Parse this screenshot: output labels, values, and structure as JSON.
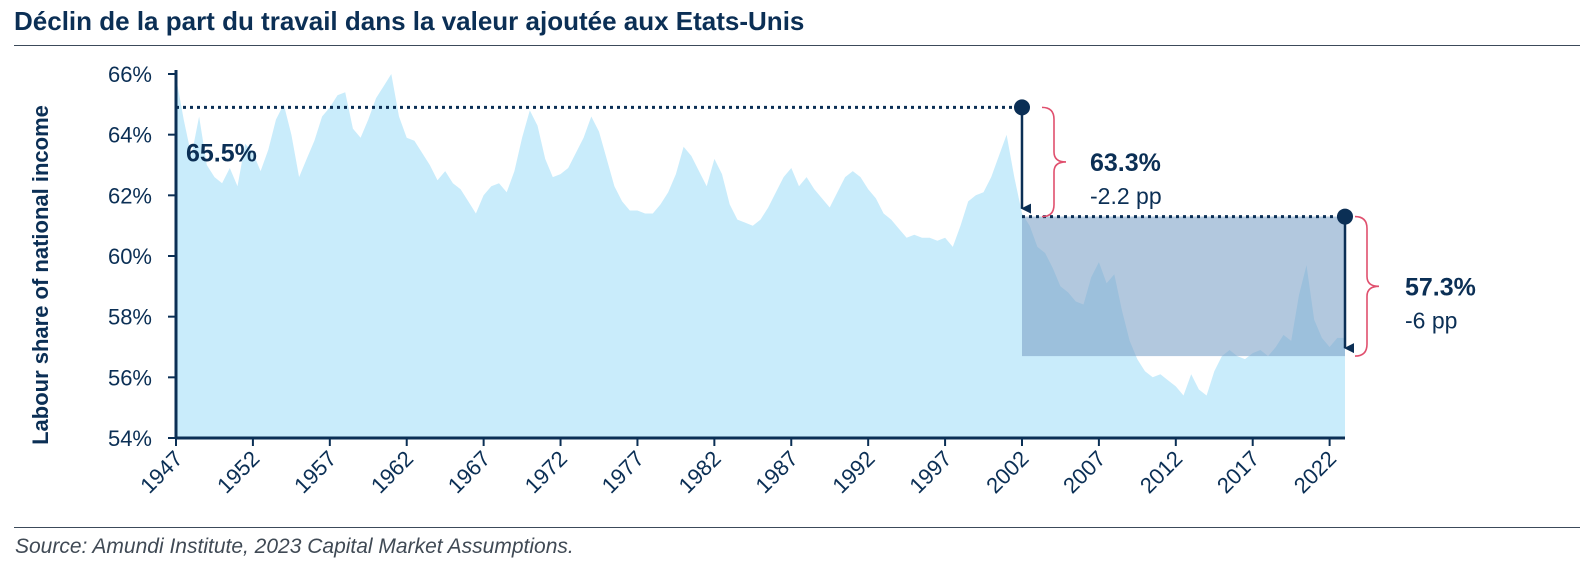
{
  "title": "Déclin de la part du travail dans la valeur ajoutée aux Etats-Unis",
  "source": "Source: Amundi Institute, 2023 Capital Market Assumptions.",
  "colors": {
    "area": "#c9ecfb",
    "axis": "#0b2f55",
    "text": "#0b2f55",
    "shade": "#7fa4c8",
    "bracket": "#e0506e"
  },
  "chart_data": {
    "type": "area",
    "title": "Déclin de la part du travail dans la valeur ajoutée aux Etats-Unis",
    "xlabel": "",
    "ylabel": "Labour share of national income",
    "ylim": [
      54,
      66
    ],
    "xlim": [
      1947,
      2023
    ],
    "y_ticks": [
      "54%",
      "56%",
      "58%",
      "60%",
      "62%",
      "64%",
      "66%"
    ],
    "x_ticks": [
      "1947",
      "1952",
      "1957",
      "1962",
      "1967",
      "1972",
      "1977",
      "1982",
      "1987",
      "1992",
      "1997",
      "2002",
      "2007",
      "2012",
      "2017",
      "2022"
    ],
    "grid": false,
    "series": [
      {
        "values": [
          [
            1947,
            65.9
          ],
          [
            1947.5,
            64.5
          ],
          [
            1948,
            63.3
          ],
          [
            1948.5,
            64.6
          ],
          [
            1949,
            63.0
          ],
          [
            1949.5,
            62.6
          ],
          [
            1950,
            62.4
          ],
          [
            1950.5,
            62.9
          ],
          [
            1951,
            62.3
          ],
          [
            1951.5,
            63.7
          ],
          [
            1952,
            63.4
          ],
          [
            1952.5,
            62.8
          ],
          [
            1953,
            63.5
          ],
          [
            1953.5,
            64.5
          ],
          [
            1954,
            65.0
          ],
          [
            1954.5,
            64.0
          ],
          [
            1955,
            62.6
          ],
          [
            1955.5,
            63.2
          ],
          [
            1956,
            63.8
          ],
          [
            1956.5,
            64.6
          ],
          [
            1957,
            64.9
          ],
          [
            1957.5,
            65.3
          ],
          [
            1958,
            65.4
          ],
          [
            1958.5,
            64.2
          ],
          [
            1959,
            63.9
          ],
          [
            1959.5,
            64.5
          ],
          [
            1960,
            65.2
          ],
          [
            1960.5,
            65.6
          ],
          [
            1961,
            66.0
          ],
          [
            1961.5,
            64.6
          ],
          [
            1962,
            63.9
          ],
          [
            1962.5,
            63.8
          ],
          [
            1963,
            63.4
          ],
          [
            1963.5,
            63.0
          ],
          [
            1964,
            62.5
          ],
          [
            1964.5,
            62.8
          ],
          [
            1965,
            62.4
          ],
          [
            1965.5,
            62.2
          ],
          [
            1966,
            61.8
          ],
          [
            1966.5,
            61.4
          ],
          [
            1967,
            62.0
          ],
          [
            1967.5,
            62.3
          ],
          [
            1968,
            62.4
          ],
          [
            1968.5,
            62.1
          ],
          [
            1969,
            62.8
          ],
          [
            1969.5,
            63.9
          ],
          [
            1970,
            64.8
          ],
          [
            1970.5,
            64.3
          ],
          [
            1971,
            63.2
          ],
          [
            1971.5,
            62.6
          ],
          [
            1972,
            62.7
          ],
          [
            1972.5,
            62.9
          ],
          [
            1973,
            63.4
          ],
          [
            1973.5,
            63.9
          ],
          [
            1974,
            64.6
          ],
          [
            1974.5,
            64.1
          ],
          [
            1975,
            63.2
          ],
          [
            1975.5,
            62.3
          ],
          [
            1976,
            61.8
          ],
          [
            1976.5,
            61.5
          ],
          [
            1977,
            61.5
          ],
          [
            1977.5,
            61.4
          ],
          [
            1978,
            61.4
          ],
          [
            1978.5,
            61.7
          ],
          [
            1979,
            62.1
          ],
          [
            1979.5,
            62.7
          ],
          [
            1980,
            63.6
          ],
          [
            1980.5,
            63.3
          ],
          [
            1981,
            62.8
          ],
          [
            1981.5,
            62.3
          ],
          [
            1982,
            63.2
          ],
          [
            1982.5,
            62.7
          ],
          [
            1983,
            61.7
          ],
          [
            1983.5,
            61.2
          ],
          [
            1984,
            61.1
          ],
          [
            1984.5,
            61.0
          ],
          [
            1985,
            61.2
          ],
          [
            1985.5,
            61.6
          ],
          [
            1986,
            62.1
          ],
          [
            1986.5,
            62.6
          ],
          [
            1987,
            62.9
          ],
          [
            1987.5,
            62.3
          ],
          [
            1988,
            62.6
          ],
          [
            1988.5,
            62.2
          ],
          [
            1989,
            61.9
          ],
          [
            1989.5,
            61.6
          ],
          [
            1990,
            62.1
          ],
          [
            1990.5,
            62.6
          ],
          [
            1991,
            62.8
          ],
          [
            1991.5,
            62.6
          ],
          [
            1992,
            62.2
          ],
          [
            1992.5,
            61.9
          ],
          [
            1993,
            61.4
          ],
          [
            1993.5,
            61.2
          ],
          [
            1994,
            60.9
          ],
          [
            1994.5,
            60.6
          ],
          [
            1995,
            60.7
          ],
          [
            1995.5,
            60.6
          ],
          [
            1996,
            60.6
          ],
          [
            1996.5,
            60.5
          ],
          [
            1997,
            60.6
          ],
          [
            1997.5,
            60.3
          ],
          [
            1998,
            61.0
          ],
          [
            1998.5,
            61.8
          ],
          [
            1999,
            62.0
          ],
          [
            1999.5,
            62.1
          ],
          [
            2000,
            62.6
          ],
          [
            2000.5,
            63.3
          ],
          [
            2001,
            64.0
          ],
          [
            2001.5,
            62.6
          ],
          [
            2002,
            61.4
          ],
          [
            2002.5,
            61.0
          ],
          [
            2003,
            60.3
          ],
          [
            2003.5,
            60.1
          ],
          [
            2004,
            59.6
          ],
          [
            2004.5,
            59.0
          ],
          [
            2005,
            58.8
          ],
          [
            2005.5,
            58.5
          ],
          [
            2006,
            58.4
          ],
          [
            2006.5,
            59.3
          ],
          [
            2007,
            59.8
          ],
          [
            2007.5,
            59.1
          ],
          [
            2008,
            59.4
          ],
          [
            2008.5,
            58.2
          ],
          [
            2009,
            57.2
          ],
          [
            2009.5,
            56.6
          ],
          [
            2010,
            56.2
          ],
          [
            2010.5,
            56.0
          ],
          [
            2011,
            56.1
          ],
          [
            2011.5,
            55.9
          ],
          [
            2012,
            55.7
          ],
          [
            2012.5,
            55.4
          ],
          [
            2013,
            56.1
          ],
          [
            2013.5,
            55.6
          ],
          [
            2014,
            55.4
          ],
          [
            2014.5,
            56.2
          ],
          [
            2015,
            56.7
          ],
          [
            2015.5,
            56.9
          ],
          [
            2016,
            56.7
          ],
          [
            2016.5,
            56.6
          ],
          [
            2017,
            56.8
          ],
          [
            2017.5,
            56.9
          ],
          [
            2018,
            56.7
          ],
          [
            2018.5,
            57.0
          ],
          [
            2019,
            57.4
          ],
          [
            2019.5,
            57.2
          ],
          [
            2020,
            58.7
          ],
          [
            2020.5,
            59.7
          ],
          [
            2021,
            57.9
          ],
          [
            2021.5,
            57.3
          ],
          [
            2022,
            57.0
          ],
          [
            2022.5,
            57.3
          ],
          [
            2023,
            57.3
          ]
        ]
      }
    ],
    "annotations": [
      {
        "label": "65.5%",
        "year": 1947,
        "value": 64.9
      },
      {
        "label": "63.3%",
        "sub": "-2.2 pp",
        "from_year": 2002,
        "from": 64.9,
        "to": 61.3
      },
      {
        "label": "57.3%",
        "sub": "-6 pp",
        "from_year": 2023,
        "from": 61.3,
        "to": 56.7
      }
    ],
    "highlight_box": {
      "x0": 2002,
      "x1": 2023,
      "y0": 56.7,
      "y1": 61.3
    }
  }
}
